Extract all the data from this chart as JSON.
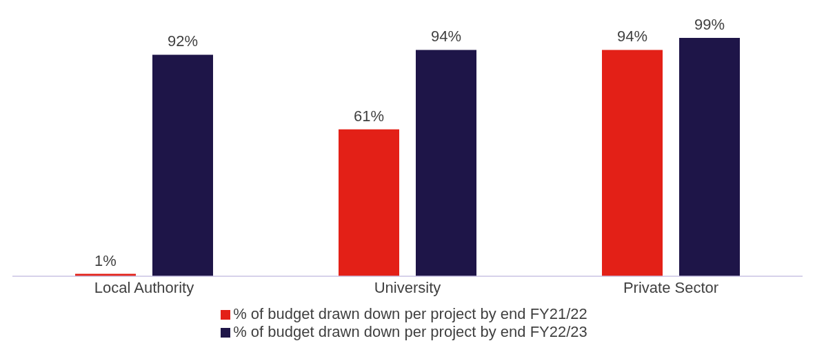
{
  "chart_data": {
    "type": "bar",
    "categories": [
      "Local Authority",
      "University",
      "Private Sector"
    ],
    "series": [
      {
        "name": "% of budget drawn down per project by end FY21/22",
        "color": "#e32017",
        "values": [
          1,
          61,
          94
        ],
        "value_labels": [
          "1%",
          "61%",
          "94%"
        ]
      },
      {
        "name": "% of budget drawn down per project by end FY22/23",
        "color": "#1e1548",
        "values": [
          92,
          94,
          99
        ],
        "value_labels": [
          "92%",
          "94%",
          "99%"
        ]
      }
    ],
    "legend": "bottom",
    "grid": false
  }
}
